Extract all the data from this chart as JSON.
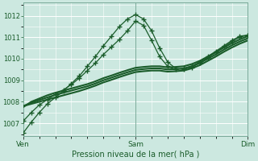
{
  "title": "",
  "xlabel": "Pression niveau de la mer( hPa )",
  "ylabel": "",
  "bg_color": "#cce8e0",
  "grid_color": "#b0d8d0",
  "line_color": "#1a5c2a",
  "ylim": [
    1006.4,
    1012.6
  ],
  "yticks": [
    1007,
    1008,
    1009,
    1010,
    1011,
    1012
  ],
  "xtick_labels": [
    "Ven",
    "Sam",
    "Dim"
  ],
  "xtick_positions": [
    0.0,
    0.5,
    1.0
  ],
  "n_points": 29,
  "series": [
    [
      1006.55,
      1007.05,
      1007.5,
      1007.9,
      1008.2,
      1008.5,
      1008.85,
      1009.2,
      1009.65,
      1010.1,
      1010.6,
      1011.05,
      1011.5,
      1011.85,
      1012.05,
      1011.85,
      1011.3,
      1010.5,
      1009.85,
      1009.55,
      1009.5,
      1009.6,
      1009.8,
      1010.05,
      1010.3,
      1010.55,
      1010.8,
      1011.0,
      1011.1
    ],
    [
      1007.1,
      1007.5,
      1007.85,
      1008.1,
      1008.35,
      1008.55,
      1008.8,
      1009.1,
      1009.45,
      1009.8,
      1010.2,
      1010.55,
      1010.9,
      1011.3,
      1011.75,
      1011.55,
      1010.85,
      1010.1,
      1009.65,
      1009.5,
      1009.55,
      1009.65,
      1009.85,
      1010.1,
      1010.35,
      1010.6,
      1010.85,
      1011.05,
      1011.1
    ],
    [
      1007.75,
      1008.0,
      1008.15,
      1008.3,
      1008.42,
      1008.52,
      1008.62,
      1008.72,
      1008.82,
      1008.95,
      1009.1,
      1009.22,
      1009.35,
      1009.47,
      1009.58,
      1009.62,
      1009.65,
      1009.65,
      1009.6,
      1009.62,
      1009.65,
      1009.75,
      1009.9,
      1010.1,
      1010.3,
      1010.52,
      1010.72,
      1010.9,
      1011.05
    ],
    [
      1007.8,
      1007.95,
      1008.08,
      1008.2,
      1008.32,
      1008.42,
      1008.52,
      1008.62,
      1008.72,
      1008.85,
      1009.0,
      1009.12,
      1009.25,
      1009.37,
      1009.48,
      1009.52,
      1009.55,
      1009.55,
      1009.5,
      1009.52,
      1009.55,
      1009.65,
      1009.8,
      1010.0,
      1010.2,
      1010.42,
      1010.62,
      1010.8,
      1010.95
    ],
    [
      1007.8,
      1007.9,
      1008.0,
      1008.1,
      1008.2,
      1008.3,
      1008.4,
      1008.5,
      1008.62,
      1008.75,
      1008.9,
      1009.02,
      1009.15,
      1009.27,
      1009.38,
      1009.42,
      1009.45,
      1009.45,
      1009.4,
      1009.42,
      1009.45,
      1009.55,
      1009.7,
      1009.9,
      1010.1,
      1010.32,
      1010.52,
      1010.7,
      1010.85
    ]
  ],
  "marker": "+",
  "marker_sizes": [
    4.5,
    4.5,
    0,
    0,
    0
  ],
  "linewidths": [
    0.9,
    0.9,
    1.5,
    1.5,
    1.5
  ]
}
